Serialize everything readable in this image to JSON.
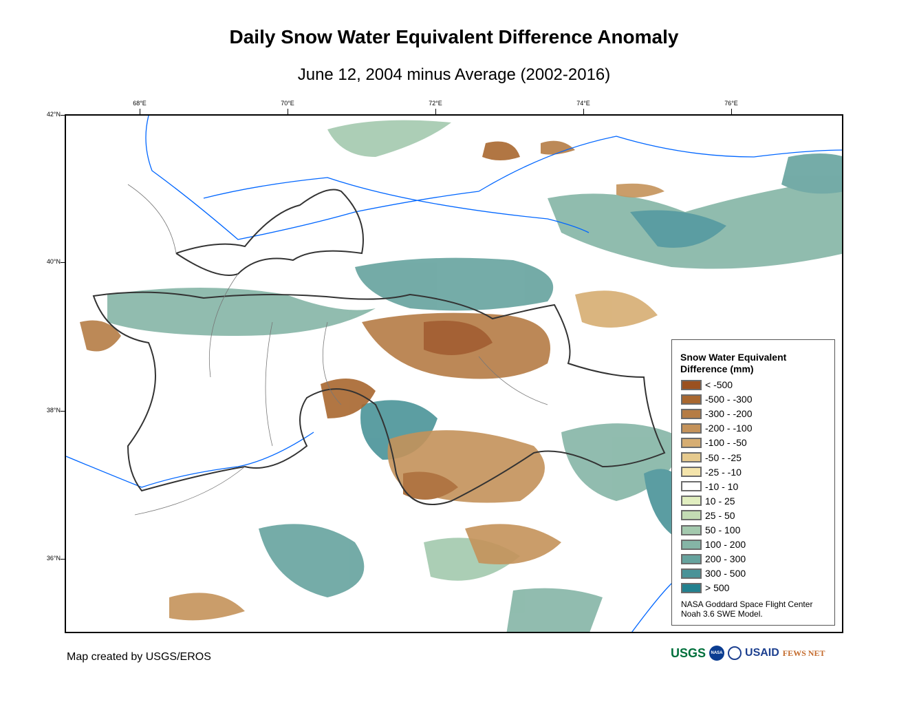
{
  "title": "Daily Snow Water Equivalent Difference Anomaly",
  "subtitle": "June 12, 2004 minus Average (2002-2016)",
  "axes": {
    "longitude": [
      "68°E",
      "70°E",
      "72°E",
      "74°E",
      "76°E"
    ],
    "latitude": [
      "42°N",
      "40°N",
      "38°N",
      "36°N"
    ]
  },
  "legend": {
    "title_line1": "Snow Water Equivalent",
    "title_line2": "Difference (mm)",
    "items": [
      {
        "label": "< -500",
        "color": "#9b5120"
      },
      {
        "label": "-500 - -300",
        "color": "#a8672f"
      },
      {
        "label": "-300 - -200",
        "color": "#b57c45"
      },
      {
        "label": "-200 - -100",
        "color": "#c4925a"
      },
      {
        "label": "-100 - -50",
        "color": "#d6ad72"
      },
      {
        "label": "-50 - -25",
        "color": "#e6ca8e"
      },
      {
        "label": "-25 - -10",
        "color": "#f4e4ab"
      },
      {
        "label": "-10 - 10",
        "color": "#ffffff"
      },
      {
        "label": "10 - 25",
        "color": "#e1eec0"
      },
      {
        "label": "25 - 50",
        "color": "#c3dbb4"
      },
      {
        "label": "50 - 100",
        "color": "#a3c9ae"
      },
      {
        "label": "100 - 200",
        "color": "#85b5a6"
      },
      {
        "label": "200 - 300",
        "color": "#66a39e"
      },
      {
        "label": "300 - 500",
        "color": "#4a9398"
      },
      {
        "label": "> 500",
        "color": "#22818f"
      }
    ],
    "credit_line1": "NASA Goddard Space Flight Center",
    "credit_line2": "Noah 3.6 SWE Model."
  },
  "footer": {
    "made_by": "Map created by USGS/EROS",
    "logos": [
      "USGS",
      "NASA",
      "USAID",
      "FEWS NET"
    ]
  }
}
